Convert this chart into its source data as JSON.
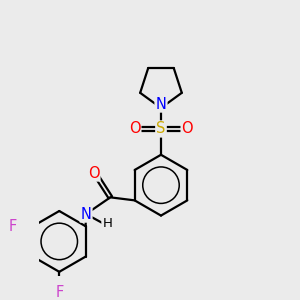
{
  "bg_color": "#ebebeb",
  "atom_colors": {
    "C": "#000000",
    "N": "#0000ff",
    "O": "#ff0000",
    "S": "#ccaa00",
    "F": "#cc44cc",
    "H": "#000000"
  },
  "bond_color": "#000000",
  "bond_width": 1.6,
  "font_size": 9.5
}
